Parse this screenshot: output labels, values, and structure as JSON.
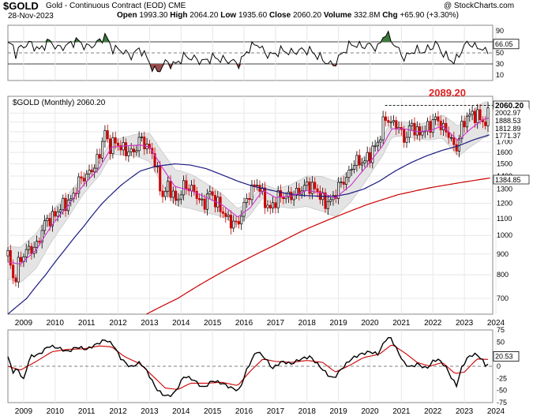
{
  "header": {
    "symbol": "$GOLD",
    "name": "Gold - Continuous Contract (EOD)",
    "exchange": "CME",
    "date": "28-Nov-2023",
    "open_label": "Open",
    "open": "1993.30",
    "high_label": "High",
    "high": "2064.20",
    "low_label": "Low",
    "low": "1935.60",
    "close_label": "Close",
    "close": "2060.20",
    "volume_label": "Volume",
    "volume": "332.8M",
    "chg_label": "Chg",
    "chg": "+65.90 (+3.30%)",
    "watermark": "@ StockCharts.com",
    "price_legend": "$GOLD (Monthly) 2060.20",
    "highlight": "2089.20"
  },
  "colors": {
    "candle_up": "#000000",
    "candle_down": "#cc0000",
    "ma_short": "#cc33cc",
    "ma_mid": "#1a1a80",
    "ma_long": "#cc0000",
    "band_fill": "#e4e4e4",
    "rsi_line": "#000000",
    "rsi_ob": "#3d7a3d",
    "rsi_os": "#9a4f4f",
    "macd_line": "#000000",
    "macd_signal": "#cc0000",
    "highlight": "#dd2222"
  },
  "chart_data": [
    {
      "type": "line",
      "title": "RSI",
      "ylim": [
        0,
        100
      ],
      "y_ticks": [
        10,
        30,
        50,
        70,
        90
      ],
      "last_value": "66.05",
      "x_years": [
        "2009",
        "2010",
        "2011",
        "2012",
        "2013",
        "2014",
        "2015",
        "2016",
        "2017",
        "2018",
        "2019",
        "2020",
        "2021",
        "2022",
        "2023",
        "2024"
      ],
      "keypoints": [
        [
          2008.75,
          65
        ],
        [
          2008.85,
          48
        ],
        [
          2009.0,
          60
        ],
        [
          2009.3,
          68
        ],
        [
          2009.6,
          55
        ],
        [
          2009.9,
          72
        ],
        [
          2010.2,
          58
        ],
        [
          2010.5,
          64
        ],
        [
          2010.8,
          73
        ],
        [
          2011.1,
          60
        ],
        [
          2011.4,
          66
        ],
        [
          2011.7,
          82
        ],
        [
          2011.9,
          58
        ],
        [
          2012.2,
          55
        ],
        [
          2012.5,
          44
        ],
        [
          2012.8,
          58
        ],
        [
          2013.0,
          42
        ],
        [
          2013.2,
          22
        ],
        [
          2013.35,
          15
        ],
        [
          2013.6,
          33
        ],
        [
          2013.9,
          28
        ],
        [
          2014.2,
          44
        ],
        [
          2014.5,
          40
        ],
        [
          2014.8,
          34
        ],
        [
          2015.1,
          42
        ],
        [
          2015.4,
          38
        ],
        [
          2015.7,
          35
        ],
        [
          2015.95,
          30
        ],
        [
          2016.2,
          54
        ],
        [
          2016.5,
          68
        ],
        [
          2016.8,
          48
        ],
        [
          2017.0,
          46
        ],
        [
          2017.3,
          55
        ],
        [
          2017.6,
          50
        ],
        [
          2017.9,
          55
        ],
        [
          2018.2,
          54
        ],
        [
          2018.5,
          42
        ],
        [
          2018.8,
          30
        ],
        [
          2018.95,
          28
        ],
        [
          2019.2,
          48
        ],
        [
          2019.5,
          66
        ],
        [
          2019.8,
          62
        ],
        [
          2020.1,
          64
        ],
        [
          2020.35,
          58
        ],
        [
          2020.5,
          78
        ],
        [
          2020.6,
          85
        ],
        [
          2020.8,
          72
        ],
        [
          2021.0,
          55
        ],
        [
          2021.2,
          40
        ],
        [
          2021.5,
          55
        ],
        [
          2021.8,
          52
        ],
        [
          2022.1,
          62
        ],
        [
          2022.2,
          68
        ],
        [
          2022.4,
          50
        ],
        [
          2022.6,
          40
        ],
        [
          2022.8,
          33
        ],
        [
          2022.95,
          48
        ],
        [
          2023.1,
          64
        ],
        [
          2023.3,
          68
        ],
        [
          2023.5,
          58
        ],
        [
          2023.7,
          60
        ],
        [
          2023.8,
          45
        ],
        [
          2023.9,
          60
        ]
      ]
    },
    {
      "type": "line",
      "title": "$GOLD (Monthly) 2060.20",
      "x_years": [
        "2009",
        "2010",
        "2011",
        "2012",
        "2013",
        "2014",
        "2015",
        "2016",
        "2017",
        "2018",
        "2019",
        "2020",
        "2021",
        "2022",
        "2023",
        "2024"
      ],
      "y_ticks": [
        700,
        800,
        900,
        1000,
        1100,
        1200,
        1300,
        1400,
        1500,
        1600,
        1700,
        1800,
        1900,
        2000
      ],
      "y_scale": "log",
      "ylim": [
        640,
        2200
      ],
      "price_labels": [
        "2060.20",
        "2002.97",
        "1888.53",
        "1812.89",
        "1771.37",
        "1384.85"
      ],
      "highlight_level": 2089.2,
      "keypoints_close": [
        [
          2008.6,
          900
        ],
        [
          2008.8,
          760
        ],
        [
          2008.95,
          860
        ],
        [
          2009.2,
          920
        ],
        [
          2009.5,
          935
        ],
        [
          2009.8,
          1090
        ],
        [
          2010.0,
          1100
        ],
        [
          2010.3,
          1180
        ],
        [
          2010.6,
          1220
        ],
        [
          2010.9,
          1380
        ],
        [
          2011.1,
          1400
        ],
        [
          2011.4,
          1500
        ],
        [
          2011.55,
          1620
        ],
        [
          2011.67,
          1820
        ],
        [
          2011.8,
          1650
        ],
        [
          2012.0,
          1700
        ],
        [
          2012.3,
          1620
        ],
        [
          2012.6,
          1600
        ],
        [
          2012.8,
          1740
        ],
        [
          2013.0,
          1660
        ],
        [
          2013.2,
          1590
        ],
        [
          2013.35,
          1420
        ],
        [
          2013.5,
          1240
        ],
        [
          2013.7,
          1330
        ],
        [
          2013.95,
          1205
        ],
        [
          2014.2,
          1330
        ],
        [
          2014.5,
          1290
        ],
        [
          2014.8,
          1180
        ],
        [
          2015.0,
          1280
        ],
        [
          2015.3,
          1180
        ],
        [
          2015.6,
          1090
        ],
        [
          2015.9,
          1060
        ],
        [
          2016.2,
          1240
        ],
        [
          2016.5,
          1350
        ],
        [
          2016.9,
          1150
        ],
        [
          2017.2,
          1250
        ],
        [
          2017.5,
          1245
        ],
        [
          2017.8,
          1275
        ],
        [
          2018.1,
          1330
        ],
        [
          2018.4,
          1300
        ],
        [
          2018.65,
          1200
        ],
        [
          2018.9,
          1220
        ],
        [
          2019.1,
          1320
        ],
        [
          2019.4,
          1400
        ],
        [
          2019.6,
          1520
        ],
        [
          2019.9,
          1515
        ],
        [
          2020.1,
          1580
        ],
        [
          2020.4,
          1720
        ],
        [
          2020.58,
          1970
        ],
        [
          2020.75,
          1880
        ],
        [
          2020.9,
          1900
        ],
        [
          2021.1,
          1780
        ],
        [
          2021.25,
          1715
        ],
        [
          2021.4,
          1900
        ],
        [
          2021.6,
          1780
        ],
        [
          2021.9,
          1830
        ],
        [
          2022.1,
          1900
        ],
        [
          2022.2,
          1950
        ],
        [
          2022.4,
          1840
        ],
        [
          2022.6,
          1780
        ],
        [
          2022.75,
          1660
        ],
        [
          2022.85,
          1640
        ],
        [
          2023.0,
          1830
        ],
        [
          2023.15,
          1950
        ],
        [
          2023.35,
          1990
        ],
        [
          2023.55,
          1960
        ],
        [
          2023.7,
          1910
        ],
        [
          2023.8,
          1870
        ],
        [
          2023.92,
          2060
        ]
      ],
      "keypoints_ma_short": [
        [
          2008.6,
          860
        ],
        [
          2009.0,
          850
        ],
        [
          2009.5,
          920
        ],
        [
          2010.0,
          1060
        ],
        [
          2010.5,
          1180
        ],
        [
          2011.0,
          1330
        ],
        [
          2011.5,
          1460
        ],
        [
          2011.9,
          1650
        ],
        [
          2012.3,
          1660
        ],
        [
          2012.8,
          1670
        ],
        [
          2013.1,
          1650
        ],
        [
          2013.5,
          1470
        ],
        [
          2013.9,
          1320
        ],
        [
          2014.4,
          1290
        ],
        [
          2014.9,
          1240
        ],
        [
          2015.4,
          1190
        ],
        [
          2015.9,
          1110
        ],
        [
          2016.3,
          1170
        ],
        [
          2016.7,
          1290
        ],
        [
          2017.1,
          1240
        ],
        [
          2017.6,
          1250
        ],
        [
          2018.1,
          1290
        ],
        [
          2018.6,
          1270
        ],
        [
          2019.0,
          1235
        ],
        [
          2019.5,
          1330
        ],
        [
          2020.0,
          1480
        ],
        [
          2020.5,
          1660
        ],
        [
          2020.8,
          1830
        ],
        [
          2021.2,
          1830
        ],
        [
          2021.6,
          1800
        ],
        [
          2022.0,
          1810
        ],
        [
          2022.4,
          1860
        ],
        [
          2022.9,
          1710
        ],
        [
          2023.3,
          1830
        ],
        [
          2023.7,
          1930
        ],
        [
          2023.92,
          1950
        ]
      ],
      "keypoints_ma_mid": [
        [
          2008.6,
          640
        ],
        [
          2009.2,
          700
        ],
        [
          2009.8,
          800
        ],
        [
          2010.4,
          920
        ],
        [
          2011.0,
          1050
        ],
        [
          2011.6,
          1200
        ],
        [
          2012.2,
          1330
        ],
        [
          2012.8,
          1440
        ],
        [
          2013.3,
          1480
        ],
        [
          2013.9,
          1500
        ],
        [
          2014.4,
          1490
        ],
        [
          2014.9,
          1460
        ],
        [
          2015.4,
          1410
        ],
        [
          2015.9,
          1360
        ],
        [
          2016.4,
          1320
        ],
        [
          2016.9,
          1295
        ],
        [
          2017.4,
          1270
        ],
        [
          2017.9,
          1255
        ],
        [
          2018.4,
          1250
        ],
        [
          2018.9,
          1245
        ],
        [
          2019.4,
          1265
        ],
        [
          2019.9,
          1300
        ],
        [
          2020.4,
          1360
        ],
        [
          2020.9,
          1440
        ],
        [
          2021.4,
          1510
        ],
        [
          2021.9,
          1570
        ],
        [
          2022.4,
          1620
        ],
        [
          2022.9,
          1660
        ],
        [
          2023.4,
          1720
        ],
        [
          2023.92,
          1771
        ]
      ],
      "keypoints_ma_long": [
        [
          2013.0,
          640
        ],
        [
          2014.0,
          700
        ],
        [
          2015.0,
          780
        ],
        [
          2016.0,
          860
        ],
        [
          2017.0,
          940
        ],
        [
          2018.0,
          1030
        ],
        [
          2019.0,
          1110
        ],
        [
          2020.0,
          1190
        ],
        [
          2021.0,
          1260
        ],
        [
          2022.0,
          1310
        ],
        [
          2023.0,
          1350
        ],
        [
          2023.92,
          1385
        ]
      ]
    },
    {
      "type": "line",
      "title": "MACD",
      "ylim": [
        -75,
        75
      ],
      "y_ticks": [
        75,
        50,
        25,
        0,
        -25,
        -50,
        -75
      ],
      "last_value": "20.53",
      "x_years": [
        "2009",
        "2010",
        "2011",
        "2012",
        "2013",
        "2014",
        "2015",
        "2016",
        "2017",
        "2018",
        "2019",
        "2020",
        "2021",
        "2022",
        "2023",
        "2024"
      ],
      "keypoints_macd": [
        [
          2008.6,
          20
        ],
        [
          2008.75,
          -12
        ],
        [
          2008.9,
          -5
        ],
        [
          2009.1,
          -28
        ],
        [
          2009.3,
          20
        ],
        [
          2009.6,
          25
        ],
        [
          2009.9,
          42
        ],
        [
          2010.2,
          38
        ],
        [
          2010.5,
          30
        ],
        [
          2010.8,
          40
        ],
        [
          2011.1,
          35
        ],
        [
          2011.4,
          45
        ],
        [
          2011.7,
          55
        ],
        [
          2011.95,
          44
        ],
        [
          2012.2,
          15
        ],
        [
          2012.5,
          -2
        ],
        [
          2012.8,
          8
        ],
        [
          2013.0,
          -8
        ],
        [
          2013.3,
          -45
        ],
        [
          2013.5,
          -58
        ],
        [
          2013.7,
          -62
        ],
        [
          2013.9,
          -55
        ],
        [
          2014.2,
          -20
        ],
        [
          2014.5,
          -28
        ],
        [
          2014.8,
          -45
        ],
        [
          2015.1,
          -30
        ],
        [
          2015.4,
          -35
        ],
        [
          2015.7,
          -45
        ],
        [
          2015.95,
          -50
        ],
        [
          2016.2,
          -5
        ],
        [
          2016.5,
          32
        ],
        [
          2016.8,
          15
        ],
        [
          2017.0,
          -5
        ],
        [
          2017.3,
          10
        ],
        [
          2017.6,
          5
        ],
        [
          2017.9,
          15
        ],
        [
          2018.2,
          20
        ],
        [
          2018.5,
          0
        ],
        [
          2018.8,
          -20
        ],
        [
          2018.95,
          -25
        ],
        [
          2019.2,
          -5
        ],
        [
          2019.5,
          15
        ],
        [
          2019.8,
          25
        ],
        [
          2020.1,
          30
        ],
        [
          2020.35,
          25
        ],
        [
          2020.6,
          55
        ],
        [
          2020.75,
          60
        ],
        [
          2020.95,
          35
        ],
        [
          2021.2,
          5
        ],
        [
          2021.4,
          -2
        ],
        [
          2021.6,
          5
        ],
        [
          2021.9,
          -5
        ],
        [
          2022.1,
          10
        ],
        [
          2022.25,
          15
        ],
        [
          2022.5,
          0
        ],
        [
          2022.7,
          -25
        ],
        [
          2022.85,
          -40
        ],
        [
          2023.0,
          -5
        ],
        [
          2023.2,
          18
        ],
        [
          2023.4,
          25
        ],
        [
          2023.55,
          22
        ],
        [
          2023.7,
          10
        ],
        [
          2023.8,
          -2
        ],
        [
          2023.92,
          14
        ]
      ],
      "keypoints_signal": [
        [
          2008.6,
          0
        ],
        [
          2009.0,
          -8
        ],
        [
          2009.5,
          10
        ],
        [
          2010.0,
          30
        ],
        [
          2010.5,
          35
        ],
        [
          2011.0,
          36
        ],
        [
          2011.5,
          42
        ],
        [
          2011.9,
          40
        ],
        [
          2012.3,
          20
        ],
        [
          2012.8,
          5
        ],
        [
          2013.2,
          -20
        ],
        [
          2013.6,
          -45
        ],
        [
          2014.0,
          -48
        ],
        [
          2014.4,
          -35
        ],
        [
          2014.9,
          -35
        ],
        [
          2015.4,
          -33
        ],
        [
          2015.9,
          -40
        ],
        [
          2016.3,
          -10
        ],
        [
          2016.7,
          15
        ],
        [
          2017.1,
          10
        ],
        [
          2017.6,
          8
        ],
        [
          2018.1,
          12
        ],
        [
          2018.6,
          8
        ],
        [
          2019.0,
          -12
        ],
        [
          2019.4,
          0
        ],
        [
          2019.9,
          18
        ],
        [
          2020.4,
          25
        ],
        [
          2020.8,
          45
        ],
        [
          2021.2,
          28
        ],
        [
          2021.6,
          8
        ],
        [
          2022.0,
          0
        ],
        [
          2022.4,
          8
        ],
        [
          2022.8,
          -15
        ],
        [
          2023.1,
          -12
        ],
        [
          2023.5,
          15
        ],
        [
          2023.92,
          14
        ]
      ]
    }
  ]
}
